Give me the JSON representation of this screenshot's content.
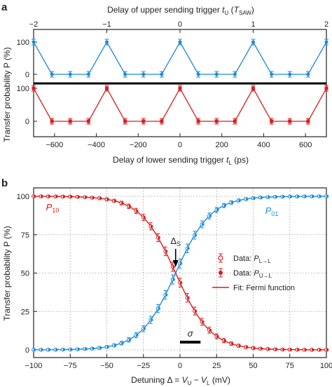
{
  "chart_data": [
    {
      "panel_label": "a",
      "type": "line",
      "bottom_axis": {
        "label_main": "Delay of lower sending trigger ",
        "label_var": "t",
        "label_sub": "L",
        "label_unit": " (ps)",
        "ticks": [
          -600,
          -400,
          -200,
          0,
          200,
          400,
          600
        ],
        "range": [
          -700,
          700
        ]
      },
      "top_axis": {
        "label_main": "Delay of upper sending trigger ",
        "label_var": "t",
        "label_sub": "U",
        "label_open": " (",
        "label_unit_var": "T",
        "label_unit_sub": "SAW",
        "label_close": ")",
        "ticks": [
          -2,
          -1,
          0,
          1,
          2
        ],
        "ticks_at_ps": [
          -700,
          -350,
          0,
          350,
          700
        ]
      },
      "ylabel": "Transfer probability P (%)",
      "series": [
        {
          "color": "#1c8ad8",
          "x": [
            -700,
            -612.5,
            -525,
            -437.5,
            -350,
            -262.5,
            -175,
            -87.5,
            0,
            87.5,
            175,
            262.5,
            350,
            437.5,
            525,
            612.5,
            700
          ],
          "y": [
            100,
            0,
            0,
            0,
            100,
            0,
            0,
            0,
            100,
            0,
            0,
            0,
            100,
            0,
            0,
            0,
            100
          ],
          "ylim": [
            0,
            100
          ],
          "yticks": [
            0,
            100
          ]
        },
        {
          "color": "#d91c1c",
          "x": [
            -700,
            -612.5,
            -525,
            -437.5,
            -350,
            -262.5,
            -175,
            -87.5,
            0,
            87.5,
            175,
            262.5,
            350,
            437.5,
            525,
            612.5,
            700
          ],
          "y": [
            100,
            0,
            0,
            0,
            100,
            0,
            0,
            0,
            100,
            0,
            0,
            0,
            100,
            0,
            0,
            0,
            100
          ],
          "ylim": [
            0,
            100
          ],
          "yticks": [
            0,
            100
          ]
        }
      ]
    },
    {
      "panel_label": "b",
      "type": "scatter",
      "xlabel_parts": [
        "Detuning Δ = ",
        "V",
        "U",
        " − ",
        "V",
        "L",
        " (mV)"
      ],
      "ylabel": "Transfer probability P (%)",
      "xlim": [
        -100,
        100
      ],
      "ylim": [
        0,
        100
      ],
      "xticks": [
        -100,
        -75,
        -50,
        -25,
        0,
        25,
        50,
        75,
        100
      ],
      "yticks": [
        0,
        25,
        50,
        75,
        100
      ],
      "grid": true,
      "fermi_fit": {
        "center": -3,
        "width": 12
      },
      "series": [
        {
          "label_main": "P",
          "label_sub": "10",
          "color": "#d91c1c",
          "marker": "filled",
          "direction": "decreasing"
        },
        {
          "label_main": "P",
          "label_sub": "01",
          "color": "#1c8ad8",
          "marker": "filled",
          "direction": "increasing"
        }
      ],
      "legend": {
        "placement": "right",
        "entries": [
          {
            "text": "Data: ",
            "var": "P",
            "sub": "L→L",
            "marker": "open"
          },
          {
            "text": "Data: ",
            "var": "P",
            "sub": "U→L",
            "marker": "filled"
          },
          {
            "text": "Fit: Fermi function",
            "marker": "line"
          }
        ]
      },
      "annotations": {
        "delta_main": "Δ",
        "delta_sub": "S",
        "sigma": "σ",
        "sigma_range": [
          0,
          14
        ]
      }
    }
  ]
}
